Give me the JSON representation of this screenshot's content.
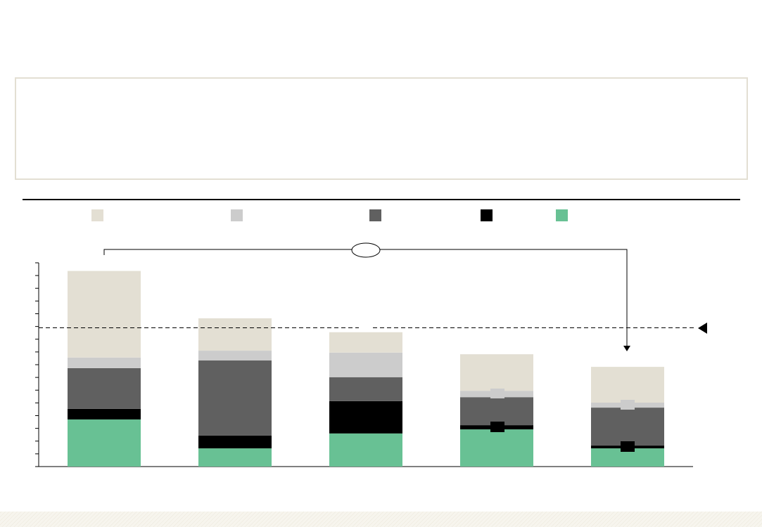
{
  "chart_data": {
    "type": "stacked_bar",
    "categories": [
      null,
      null,
      null,
      null,
      null
    ],
    "series": [
      {
        "color": "#e3dfd3",
        "values": [
          6.8,
          2.54,
          1.6,
          2.87,
          2.81
        ]
      },
      {
        "color": "#cccccc",
        "values": [
          0.83,
          0.77,
          1.93,
          0.5,
          0.39
        ]
      },
      {
        "color": "#606060",
        "values": [
          3.2,
          5.9,
          1.88,
          2.2,
          2.98
        ]
      },
      {
        "color": "#000000",
        "values": [
          0.83,
          1.0,
          2.54,
          0.33,
          0.22
        ]
      },
      {
        "color": "#68c194",
        "values": [
          3.7,
          1.43,
          2.6,
          2.92,
          1.43
        ]
      }
    ],
    "ylim": [
      0,
      16
    ],
    "yticks": [
      0,
      1,
      2,
      3,
      4,
      5,
      6,
      7,
      8,
      9,
      10,
      11,
      12,
      13,
      14,
      15,
      16
    ],
    "reference_line": 10.9
  }
}
